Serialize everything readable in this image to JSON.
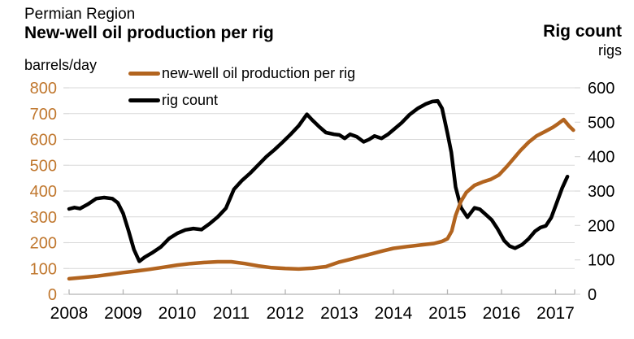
{
  "header": {
    "region": "Permian Region",
    "title": "New-well oil production per rig",
    "left_units": "barrels/day",
    "right_title": "Rig count",
    "right_units": "rigs"
  },
  "legend": {
    "items": [
      {
        "label": "new-well oil production per rig",
        "color": "#b2641f"
      },
      {
        "label": "rig count",
        "color": "#000000"
      }
    ]
  },
  "colors": {
    "brown_line": "#b2641f",
    "brown_text": "#c0772e",
    "black_line": "#000000",
    "gridline": "#d9d9d9",
    "axis": "#b3b3b3"
  },
  "chart_data": {
    "type": "line",
    "title": "Permian Region — New-well oil production per rig",
    "grid": true,
    "legend_position": "top-left",
    "x_axis": {
      "tick_labels": [
        "2008",
        "2009",
        "2010",
        "2011",
        "2012",
        "2013",
        "2014",
        "2015",
        "2016",
        "2017"
      ],
      "tick_years": [
        2008,
        2009,
        2010,
        2011,
        2012,
        2013,
        2014,
        2015,
        2016,
        2017
      ],
      "range": [
        2008.0,
        2017.35
      ]
    },
    "y_left": {
      "label": "barrels/day",
      "ticks": [
        0,
        100,
        200,
        300,
        400,
        500,
        600,
        700,
        800
      ],
      "range": [
        0,
        800
      ]
    },
    "y_right": {
      "label": "rigs",
      "ticks": [
        0,
        100,
        200,
        300,
        400,
        500,
        600
      ],
      "range": [
        0,
        600
      ]
    },
    "series": [
      {
        "name": "new-well oil production per rig",
        "axis": "left",
        "units": "barrels/day",
        "color": "#b2641f",
        "points": [
          [
            2008.0,
            60
          ],
          [
            2008.25,
            65
          ],
          [
            2008.5,
            70
          ],
          [
            2008.75,
            77
          ],
          [
            2009.0,
            84
          ],
          [
            2009.25,
            90
          ],
          [
            2009.5,
            97
          ],
          [
            2009.75,
            105
          ],
          [
            2010.0,
            113
          ],
          [
            2010.25,
            119
          ],
          [
            2010.5,
            123
          ],
          [
            2010.75,
            126
          ],
          [
            2011.0,
            126
          ],
          [
            2011.25,
            119
          ],
          [
            2011.5,
            110
          ],
          [
            2011.75,
            103
          ],
          [
            2012.0,
            100
          ],
          [
            2012.25,
            98
          ],
          [
            2012.5,
            101
          ],
          [
            2012.75,
            107
          ],
          [
            2013.0,
            125
          ],
          [
            2013.2,
            135
          ],
          [
            2013.4,
            146
          ],
          [
            2013.6,
            157
          ],
          [
            2013.8,
            168
          ],
          [
            2014.0,
            178
          ],
          [
            2014.25,
            185
          ],
          [
            2014.5,
            191
          ],
          [
            2014.75,
            197
          ],
          [
            2014.9,
            205
          ],
          [
            2015.0,
            215
          ],
          [
            2015.08,
            245
          ],
          [
            2015.15,
            305
          ],
          [
            2015.25,
            360
          ],
          [
            2015.35,
            395
          ],
          [
            2015.5,
            422
          ],
          [
            2015.65,
            435
          ],
          [
            2015.8,
            445
          ],
          [
            2015.95,
            462
          ],
          [
            2016.1,
            495
          ],
          [
            2016.2,
            520
          ],
          [
            2016.35,
            557
          ],
          [
            2016.5,
            589
          ],
          [
            2016.65,
            614
          ],
          [
            2016.8,
            630
          ],
          [
            2016.95,
            647
          ],
          [
            2017.05,
            661
          ],
          [
            2017.15,
            677
          ],
          [
            2017.25,
            652
          ],
          [
            2017.33,
            636
          ]
        ]
      },
      {
        "name": "rig count",
        "axis": "right",
        "units": "rigs",
        "color": "#000000",
        "points": [
          [
            2008.0,
            248
          ],
          [
            2008.1,
            252
          ],
          [
            2008.2,
            249
          ],
          [
            2008.35,
            262
          ],
          [
            2008.5,
            278
          ],
          [
            2008.65,
            281
          ],
          [
            2008.8,
            278
          ],
          [
            2008.9,
            266
          ],
          [
            2009.0,
            235
          ],
          [
            2009.1,
            185
          ],
          [
            2009.2,
            130
          ],
          [
            2009.3,
            96
          ],
          [
            2009.4,
            108
          ],
          [
            2009.55,
            122
          ],
          [
            2009.7,
            138
          ],
          [
            2009.85,
            162
          ],
          [
            2010.0,
            177
          ],
          [
            2010.15,
            187
          ],
          [
            2010.3,
            191
          ],
          [
            2010.45,
            188
          ],
          [
            2010.6,
            205
          ],
          [
            2010.75,
            225
          ],
          [
            2010.9,
            250
          ],
          [
            2011.05,
            305
          ],
          [
            2011.2,
            331
          ],
          [
            2011.35,
            352
          ],
          [
            2011.5,
            376
          ],
          [
            2011.65,
            400
          ],
          [
            2011.8,
            420
          ],
          [
            2011.95,
            442
          ],
          [
            2012.1,
            465
          ],
          [
            2012.25,
            490
          ],
          [
            2012.4,
            523
          ],
          [
            2012.5,
            506
          ],
          [
            2012.62,
            488
          ],
          [
            2012.75,
            470
          ],
          [
            2012.9,
            465
          ],
          [
            2013.0,
            463
          ],
          [
            2013.1,
            453
          ],
          [
            2013.2,
            465
          ],
          [
            2013.32,
            458
          ],
          [
            2013.45,
            443
          ],
          [
            2013.55,
            450
          ],
          [
            2013.65,
            460
          ],
          [
            2013.78,
            453
          ],
          [
            2013.9,
            465
          ],
          [
            2014.0,
            478
          ],
          [
            2014.15,
            498
          ],
          [
            2014.3,
            522
          ],
          [
            2014.45,
            540
          ],
          [
            2014.6,
            553
          ],
          [
            2014.72,
            560
          ],
          [
            2014.82,
            562
          ],
          [
            2014.9,
            540
          ],
          [
            2015.0,
            468
          ],
          [
            2015.07,
            413
          ],
          [
            2015.15,
            312
          ],
          [
            2015.25,
            252
          ],
          [
            2015.37,
            224
          ],
          [
            2015.5,
            251
          ],
          [
            2015.6,
            247
          ],
          [
            2015.72,
            230
          ],
          [
            2015.82,
            216
          ],
          [
            2015.92,
            192
          ],
          [
            2016.05,
            156
          ],
          [
            2016.15,
            140
          ],
          [
            2016.25,
            134
          ],
          [
            2016.38,
            144
          ],
          [
            2016.5,
            161
          ],
          [
            2016.62,
            183
          ],
          [
            2016.72,
            194
          ],
          [
            2016.82,
            199
          ],
          [
            2016.92,
            223
          ],
          [
            2017.02,
            265
          ],
          [
            2017.12,
            308
          ],
          [
            2017.22,
            342
          ]
        ]
      }
    ]
  }
}
